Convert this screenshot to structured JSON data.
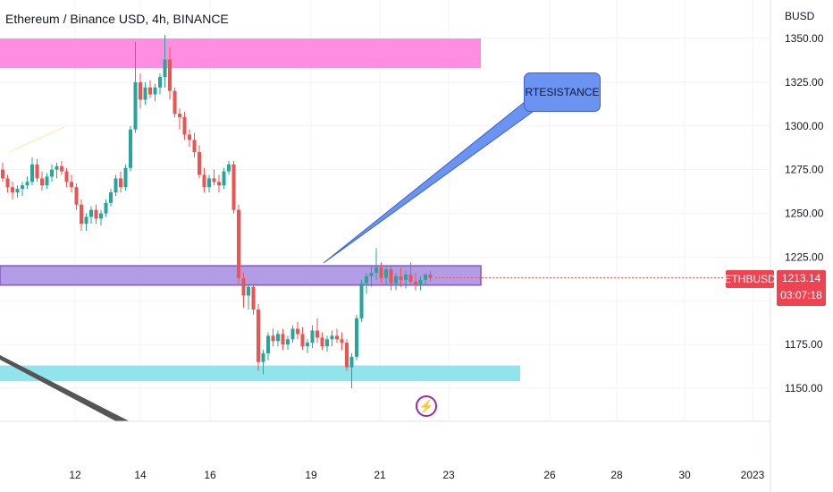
{
  "chart_data": {
    "type": "candlestick",
    "title": "Ethereum / Binance USD, 4h, BINANCE",
    "currency_label": "BUSD",
    "y_ticks": [
      1350,
      1325,
      1300,
      1275,
      1250,
      1225,
      1175,
      1150
    ],
    "y_tick_labels": [
      "1350.00",
      "1325.00",
      "1300.00",
      "1275.00",
      "1250.00",
      "1225.00",
      "1175.00",
      "1150.00"
    ],
    "x_tick_labels": [
      "12",
      "14",
      "16",
      "19",
      "21",
      "23",
      "26",
      "28",
      "30",
      "2023"
    ],
    "ylim": [
      1130,
      1365
    ],
    "grid": true,
    "zones": [
      {
        "name": "resistance-top",
        "low": 1333,
        "high": 1350,
        "color": "#ff8ee0"
      },
      {
        "name": "resistance-mid",
        "low": 1209,
        "high": 1220,
        "color": "#b39ce6"
      },
      {
        "name": "support-bottom",
        "low": 1154,
        "high": 1163,
        "color": "#91e3ec"
      }
    ],
    "annotation": "RTESISTANCE",
    "symbol": "ETHBUSD",
    "last_price": "1213.14",
    "countdown": "03:07:18",
    "up_color": "#26a69a",
    "down_color": "#ef5350",
    "candles": [
      [
        1275,
        1279,
        1268,
        1270
      ],
      [
        1270,
        1272,
        1262,
        1265
      ],
      [
        1265,
        1268,
        1258,
        1262
      ],
      [
        1262,
        1266,
        1259,
        1264
      ],
      [
        1264,
        1268,
        1260,
        1266
      ],
      [
        1266,
        1271,
        1264,
        1268
      ],
      [
        1268,
        1282,
        1266,
        1278
      ],
      [
        1278,
        1281,
        1268,
        1270
      ],
      [
        1270,
        1274,
        1263,
        1266
      ],
      [
        1266,
        1273,
        1264,
        1271
      ],
      [
        1271,
        1278,
        1268,
        1275
      ],
      [
        1275,
        1279,
        1270,
        1277
      ],
      [
        1277,
        1280,
        1272,
        1274
      ],
      [
        1274,
        1276,
        1265,
        1268
      ],
      [
        1268,
        1272,
        1262,
        1265
      ],
      [
        1265,
        1267,
        1252,
        1255
      ],
      [
        1255,
        1258,
        1240,
        1244
      ],
      [
        1244,
        1250,
        1240,
        1248
      ],
      [
        1248,
        1254,
        1244,
        1252
      ],
      [
        1252,
        1255,
        1244,
        1247
      ],
      [
        1247,
        1252,
        1243,
        1250
      ],
      [
        1250,
        1258,
        1248,
        1256
      ],
      [
        1256,
        1264,
        1254,
        1262
      ],
      [
        1262,
        1272,
        1260,
        1270
      ],
      [
        1270,
        1274,
        1262,
        1265
      ],
      [
        1265,
        1278,
        1263,
        1276
      ],
      [
        1276,
        1300,
        1274,
        1298
      ],
      [
        1298,
        1348,
        1296,
        1325
      ],
      [
        1325,
        1330,
        1310,
        1315
      ],
      [
        1315,
        1325,
        1312,
        1322
      ],
      [
        1322,
        1326,
        1316,
        1318
      ],
      [
        1318,
        1324,
        1314,
        1322
      ],
      [
        1322,
        1330,
        1318,
        1328
      ],
      [
        1328,
        1352,
        1322,
        1338
      ],
      [
        1338,
        1345,
        1315,
        1320
      ],
      [
        1320,
        1322,
        1305,
        1307
      ],
      [
        1307,
        1310,
        1298,
        1305
      ],
      [
        1305,
        1308,
        1292,
        1295
      ],
      [
        1295,
        1298,
        1288,
        1292
      ],
      [
        1292,
        1296,
        1282,
        1285
      ],
      [
        1285,
        1289,
        1270,
        1272
      ],
      [
        1272,
        1276,
        1262,
        1265
      ],
      [
        1265,
        1272,
        1262,
        1270
      ],
      [
        1270,
        1275,
        1266,
        1268
      ],
      [
        1268,
        1272,
        1262,
        1266
      ],
      [
        1266,
        1276,
        1264,
        1274
      ],
      [
        1274,
        1280,
        1272,
        1278
      ],
      [
        1278,
        1280,
        1250,
        1252
      ],
      [
        1252,
        1255,
        1210,
        1213
      ],
      [
        1213,
        1216,
        1196,
        1203
      ],
      [
        1203,
        1210,
        1195,
        1208
      ],
      [
        1208,
        1210,
        1192,
        1195
      ],
      [
        1195,
        1198,
        1160,
        1165
      ],
      [
        1165,
        1172,
        1158,
        1170
      ],
      [
        1170,
        1182,
        1166,
        1180
      ],
      [
        1180,
        1184,
        1174,
        1177
      ],
      [
        1177,
        1183,
        1174,
        1181
      ],
      [
        1181,
        1184,
        1172,
        1175
      ],
      [
        1175,
        1180,
        1172,
        1178
      ],
      [
        1178,
        1186,
        1176,
        1184
      ],
      [
        1184,
        1188,
        1178,
        1181
      ],
      [
        1181,
        1185,
        1172,
        1174
      ],
      [
        1174,
        1178,
        1170,
        1176
      ],
      [
        1176,
        1186,
        1173,
        1183
      ],
      [
        1183,
        1190,
        1176,
        1179
      ],
      [
        1179,
        1182,
        1172,
        1174
      ],
      [
        1174,
        1180,
        1171,
        1178
      ],
      [
        1178,
        1183,
        1174,
        1180
      ],
      [
        1180,
        1184,
        1176,
        1178
      ],
      [
        1178,
        1182,
        1172,
        1176
      ],
      [
        1176,
        1178,
        1160,
        1162
      ],
      [
        1162,
        1170,
        1150,
        1168
      ],
      [
        1168,
        1192,
        1166,
        1190
      ],
      [
        1190,
        1212,
        1188,
        1210
      ],
      [
        1210,
        1216,
        1204,
        1214
      ],
      [
        1214,
        1220,
        1208,
        1216
      ],
      [
        1216,
        1230,
        1212,
        1219
      ],
      [
        1219,
        1222,
        1210,
        1213
      ],
      [
        1213,
        1220,
        1209,
        1218
      ],
      [
        1218,
        1220,
        1206,
        1210
      ],
      [
        1210,
        1216,
        1206,
        1214
      ],
      [
        1214,
        1219,
        1208,
        1212
      ],
      [
        1212,
        1217,
        1207,
        1215
      ],
      [
        1215,
        1222,
        1210,
        1211
      ],
      [
        1211,
        1216,
        1206,
        1209
      ],
      [
        1209,
        1214,
        1206,
        1212
      ],
      [
        1212,
        1216,
        1209,
        1215
      ],
      [
        1215,
        1217,
        1211,
        1213
      ]
    ]
  }
}
